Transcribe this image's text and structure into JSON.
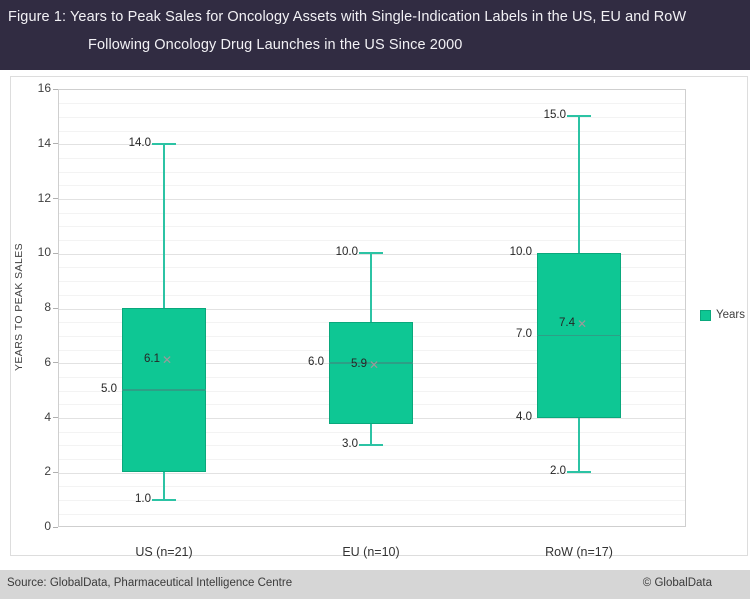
{
  "header": {
    "title_line1": "Figure 1: Years to Peak Sales for Oncology Assets with Single-Indication Labels in the US, EU and RoW",
    "title_line2": "Following Oncology Drug Launches in the US Since 2000",
    "bg_color": "#312c42",
    "text_color": "#f2f1f5"
  },
  "chart_data": {
    "type": "boxplot",
    "ylabel": "YEARS TO PEAK SALES",
    "xlabel": "",
    "ylim": [
      0,
      16
    ],
    "ytick_step": 2,
    "minor_gridline_step": 0.5,
    "grid": true,
    "legend": {
      "label": "Years",
      "position": "right",
      "color": "#0ec794"
    },
    "categories": [
      "US (n=21)",
      "EU (n=10)",
      "RoW (n=17)"
    ],
    "series": [
      {
        "category": "US (n=21)",
        "whisker_low": 1.0,
        "q1": 2.0,
        "median": 5.0,
        "mean": 6.1,
        "q3": 8.0,
        "whisker_high": 14.0,
        "labels": {
          "whisker_high": "14.0",
          "mean": "6.1",
          "median": "5.0",
          "whisker_low": "1.0"
        }
      },
      {
        "category": "EU (n=10)",
        "whisker_low": 3.0,
        "q1": 3.75,
        "median": 6.0,
        "mean": 5.9,
        "q3": 7.5,
        "whisker_high": 10.0,
        "labels": {
          "whisker_high": "10.0",
          "median": "6.0",
          "mean": "5.9",
          "whisker_low": "3.0"
        }
      },
      {
        "category": "RoW (n=17)",
        "whisker_low": 2.0,
        "q1": 4.0,
        "median": 7.0,
        "mean": 7.4,
        "q3": 10.0,
        "whisker_high": 15.0,
        "labels": {
          "whisker_high": "15.0",
          "q3": "10.0",
          "mean": "7.4",
          "median": "7.0",
          "q1": "4.0",
          "whisker_low": "2.0"
        }
      }
    ],
    "colors": {
      "box_fill": "#0ec794",
      "box_border": "#0aa87c",
      "whisker": "#2cc3a4",
      "median": "#2d9f86",
      "mean_marker": "#9a9a9a",
      "major_grid": "#e2e2e2",
      "minor_grid": "#f3f3f3"
    },
    "mean_marker_glyph": "✕"
  },
  "footer": {
    "source": "Source: GlobalData, Pharmaceutical Intelligence Centre",
    "copyright": "© GlobalData"
  }
}
